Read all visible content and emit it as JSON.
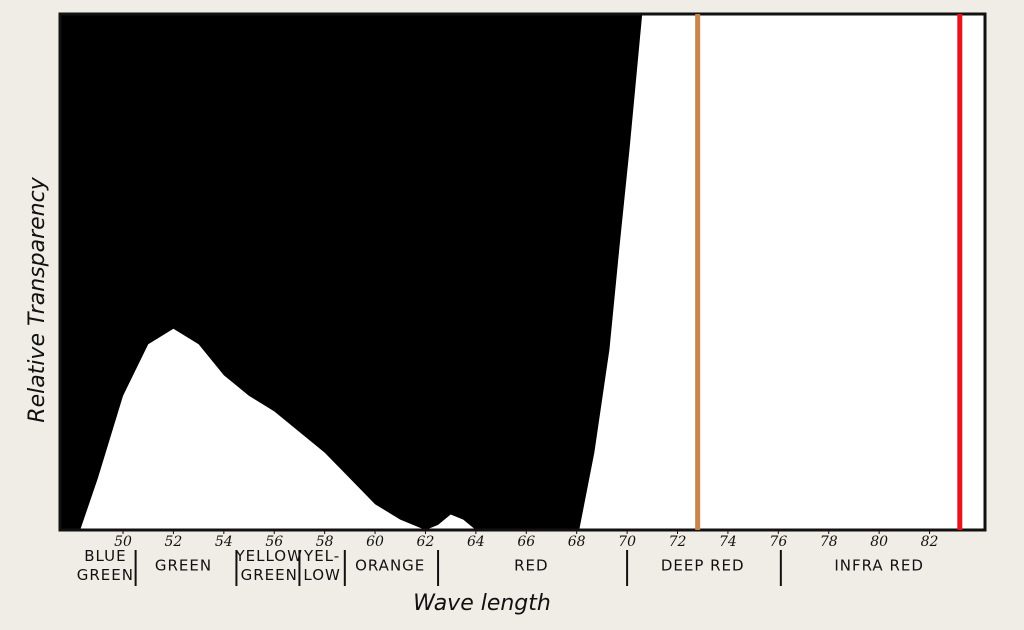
{
  "chart_data": {
    "type": "area",
    "xlabel": "Wave length",
    "ylabel": "Relative Transparency",
    "xlim": [
      47.5,
      84.2
    ],
    "ylim": [
      0,
      100
    ],
    "xticks": [
      50,
      52,
      54,
      56,
      58,
      60,
      62,
      64,
      66,
      68,
      70,
      72,
      74,
      76,
      78,
      80,
      82
    ],
    "x": [
      48.3,
      49,
      50,
      51,
      52,
      53,
      54,
      55,
      56,
      57,
      58,
      59,
      60,
      61,
      62,
      62.5,
      63,
      63.5,
      64,
      66,
      68.1,
      68.7,
      69.3,
      69.7,
      70.1,
      70.6,
      84.2
    ],
    "values": [
      0,
      10,
      26,
      36,
      39,
      36,
      30,
      26,
      23,
      19,
      15,
      10,
      5,
      2,
      0,
      1,
      3,
      2,
      0,
      0,
      0,
      15,
      35,
      55,
      74,
      100,
      100
    ],
    "background_color": "#000000",
    "color": "#ffffff",
    "markers": [
      {
        "x": 72.8,
        "color": "#c8864a"
      },
      {
        "x": 83.2,
        "color": "#e8141a"
      }
    ],
    "band_boundaries": [
      50.5,
      54.5,
      57,
      58.8,
      62.5,
      70,
      76.1
    ],
    "bands": [
      {
        "lines": [
          "BLUE",
          "GREEN"
        ],
        "center": 49.3
      },
      {
        "lines": [
          "GREEN"
        ],
        "center": 52.4
      },
      {
        "lines": [
          "YELLOW",
          "GREEN"
        ],
        "center": 55.8
      },
      {
        "lines": [
          "YEL-",
          "LOW"
        ],
        "center": 57.9
      },
      {
        "lines": [
          "ORANGE"
        ],
        "center": 60.6
      },
      {
        "lines": [
          "RED"
        ],
        "center": 66.2
      },
      {
        "lines": [
          "DEEP RED"
        ],
        "center": 73
      },
      {
        "lines": [
          "INFRA RED"
        ],
        "center": 80
      }
    ]
  }
}
